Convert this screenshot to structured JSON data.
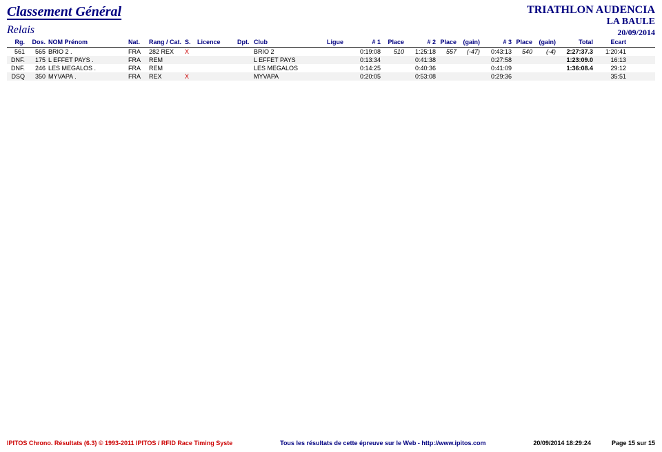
{
  "header": {
    "title": "Classement Général",
    "subtitle": "Relais",
    "event_line1": "TRIATHLON AUDENCIA",
    "event_line2": "LA BAULE",
    "event_date": "20/09/2014"
  },
  "columns": {
    "rg": "Rg.",
    "dos": "Dos.",
    "nom": "NOM Prénom",
    "nat": "Nat.",
    "rangcat": "Rang / Cat.",
    "s": "S.",
    "licence": "Licence",
    "dpt": "Dpt.",
    "club": "Club",
    "ligue": "Ligue",
    "t1": "# 1",
    "p1": "Place",
    "t2": "# 2",
    "p2": "Place",
    "g2": "(gain)",
    "t3": "# 3",
    "p3": "Place",
    "g3": "(gain)",
    "total": "Total",
    "ecart": "Ecart"
  },
  "rows": [
    {
      "rg": "561",
      "dos": "565",
      "nom": "BRIO 2 .",
      "nat": "FRA",
      "rang": "282",
      "cat": "REX",
      "s": "X",
      "club": "BRIO 2",
      "t1": "0:19:08",
      "p1": "510",
      "t2": "1:25:18",
      "p2": "557",
      "g2": "(-47)",
      "t3": "0:43:13",
      "p3": "540",
      "g3": "(-4)",
      "total": "2:27:37.3",
      "ecart": "1:20:41",
      "alt": false
    },
    {
      "rg": "DNF.",
      "dos": "175",
      "nom": "L EFFET PAYS .",
      "nat": "FRA",
      "rang": "",
      "cat": "REM",
      "s": "",
      "club": "L EFFET PAYS",
      "t1": "0:13:34",
      "p1": "",
      "t2": "0:41:38",
      "p2": "",
      "g2": "",
      "t3": "0:27:58",
      "p3": "",
      "g3": "",
      "total": "1:23:09.0",
      "ecart": "16:13",
      "alt": true
    },
    {
      "rg": "DNF.",
      "dos": "246",
      "nom": "LES MEGALOS .",
      "nat": "FRA",
      "rang": "",
      "cat": "REM",
      "s": "",
      "club": "LES MEGALOS",
      "t1": "0:14:25",
      "p1": "",
      "t2": "0:40:36",
      "p2": "",
      "g2": "",
      "t3": "0:41:09",
      "p3": "",
      "g3": "",
      "total": "1:36:08.4",
      "ecart": "29:12",
      "alt": false
    },
    {
      "rg": "DSQ",
      "dos": "350",
      "nom": "MYVAPA .",
      "nat": "FRA",
      "rang": "",
      "cat": "REX",
      "s": "X",
      "club": "MYVAPA",
      "t1": "0:20:05",
      "p1": "",
      "t2": "0:53:08",
      "p2": "",
      "g2": "",
      "t3": "0:29:36",
      "p3": "",
      "g3": "",
      "total": "",
      "ecart": "35:51",
      "alt": true
    }
  ],
  "footer": {
    "left": "IPITOS Chrono. Résultats (6.3) © 1993-2011 IPITOS / RFID Race Timing Syste",
    "middle": "Tous les résultats de cette épreuve sur le Web - http://www.ipitos.com",
    "datetime": "20/09/2014 18:29:24",
    "page": "Page 15 sur 15"
  }
}
